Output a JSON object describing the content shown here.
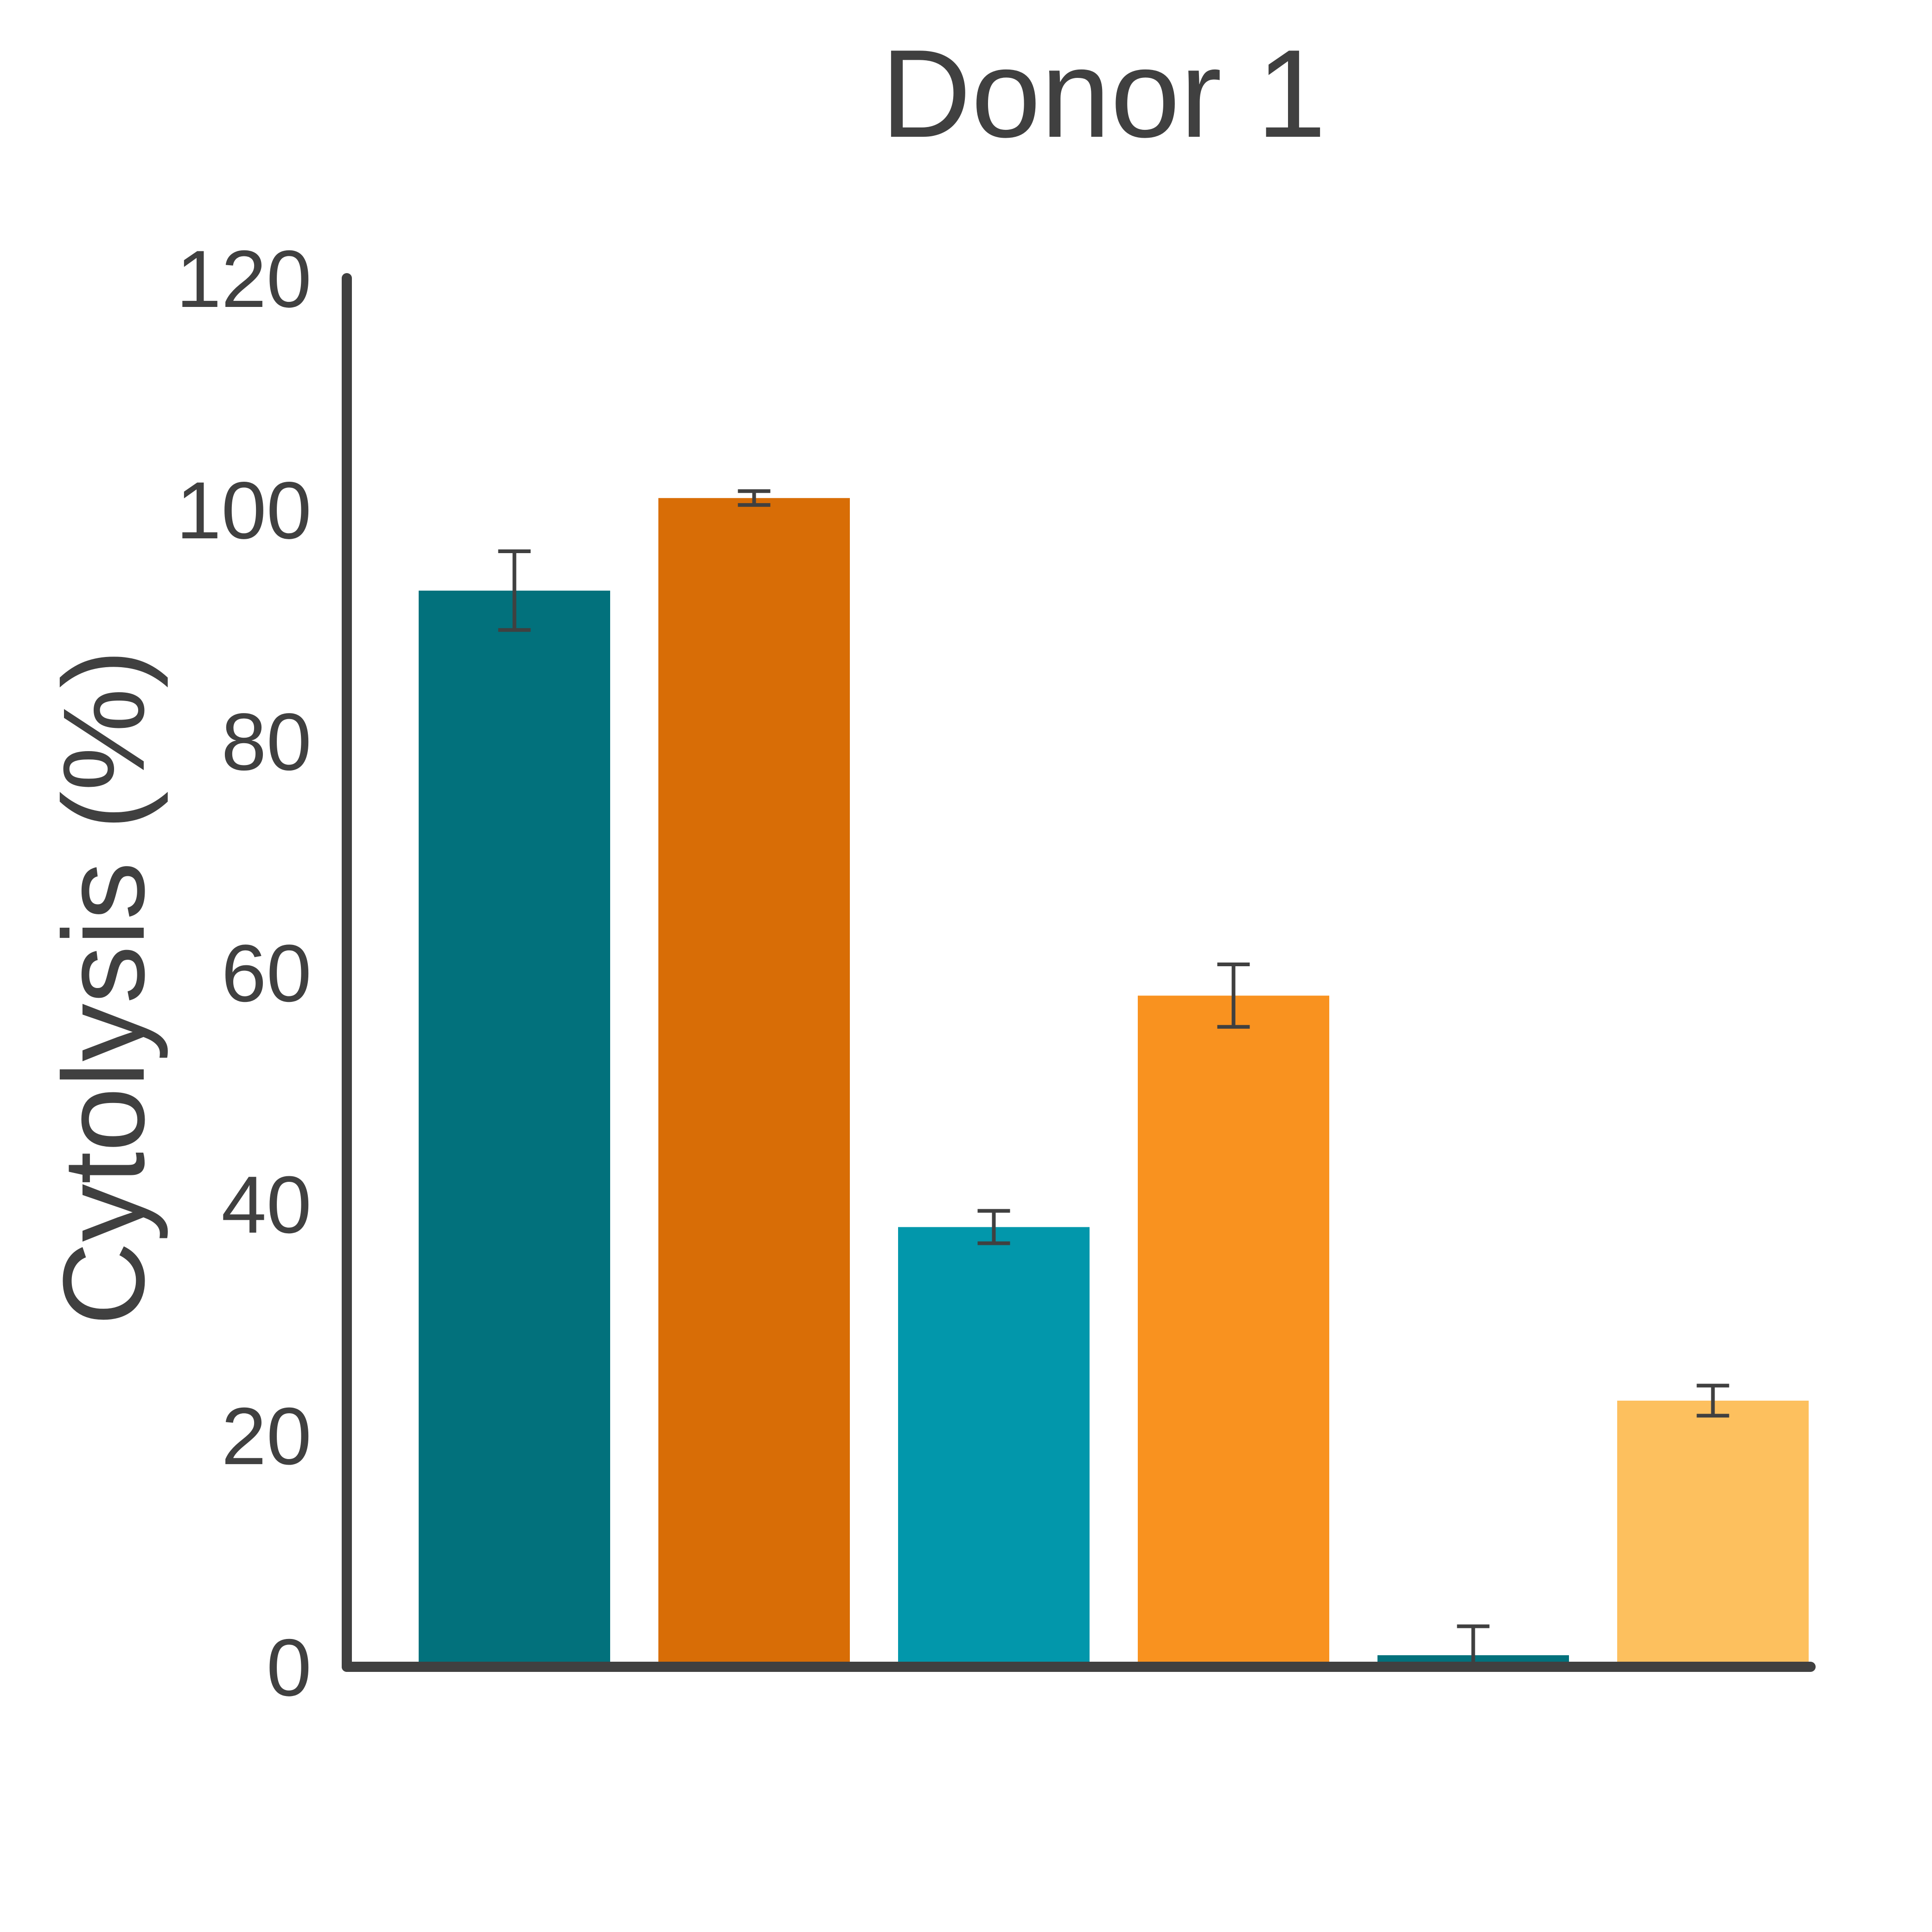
{
  "chart_data": {
    "type": "bar",
    "title": "Donor 1",
    "ylabel": "Cytolysis (%)",
    "xlabel": "",
    "ylim": [
      0,
      120
    ],
    "yticks": [
      0,
      20,
      40,
      60,
      80,
      100,
      120
    ],
    "ytick_labels": [
      "0",
      "20",
      "40",
      "60",
      "80",
      "100",
      "120"
    ],
    "grid": false,
    "legend": "none",
    "values": [
      93,
      101,
      38,
      58,
      1,
      23
    ],
    "errors": [
      3.4,
      0.6,
      1.4,
      2.7,
      2.5,
      1.3
    ],
    "colors": [
      "#02717C",
      "#D86D06",
      "#0297AB",
      "#F9921F",
      "#02717C",
      "#FDC05E"
    ]
  }
}
